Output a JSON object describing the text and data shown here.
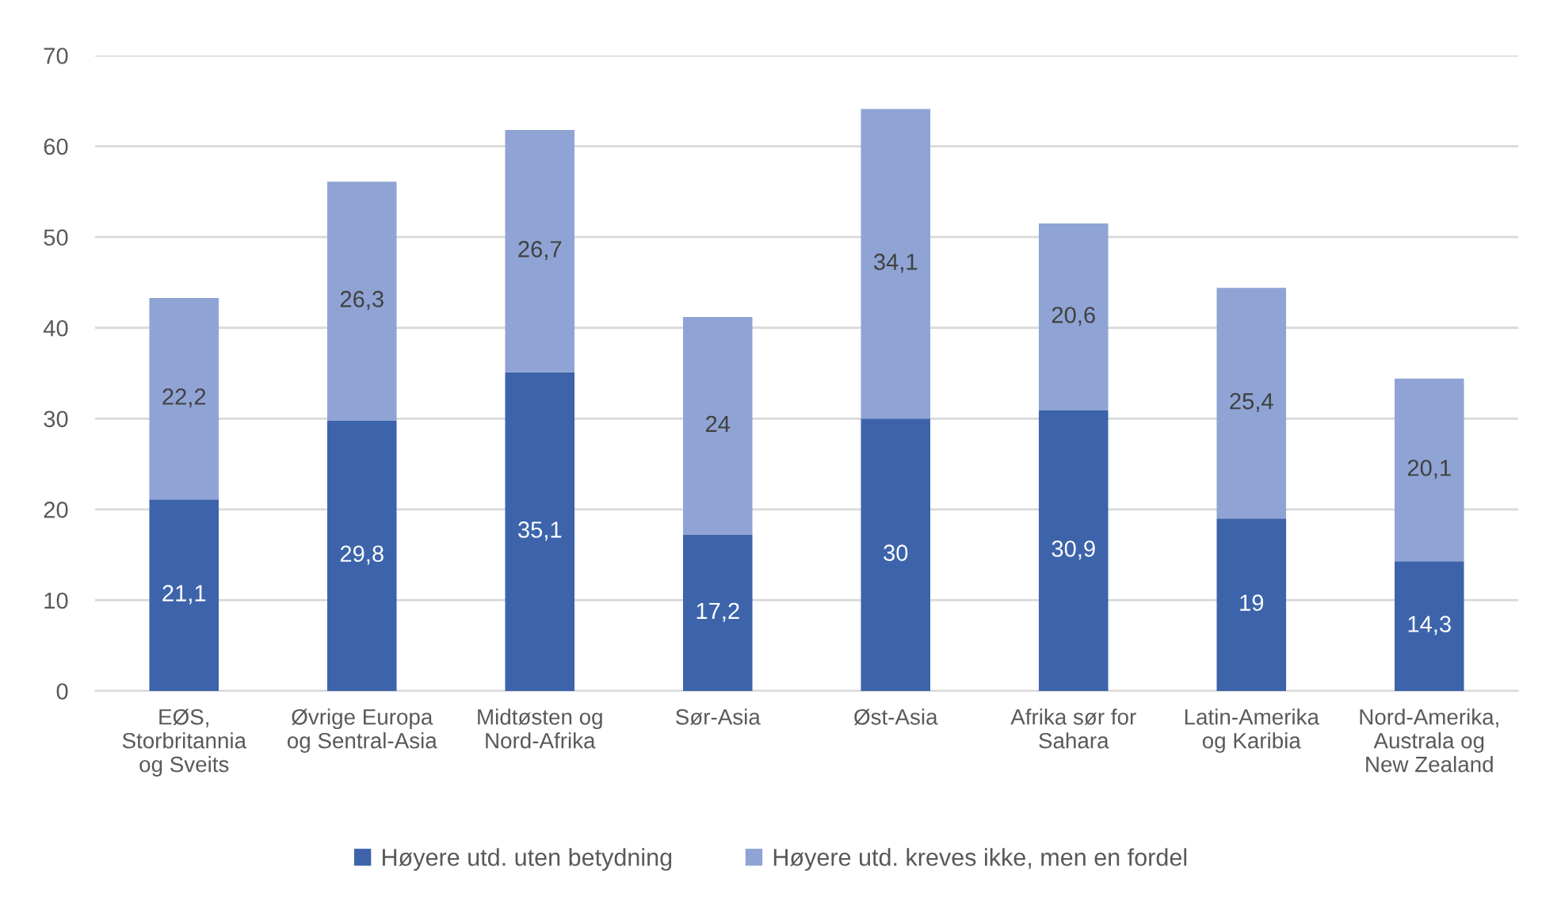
{
  "chart_data": {
    "type": "bar",
    "stacked": true,
    "categories": [
      "EØS,\nStorbritannia\nog Sveits",
      "Øvrige Europa\nog Sentral-Asia",
      "Midtøsten og\nNord-Afrika",
      "Sør-Asia",
      "Øst-Asia",
      "Afrika sør for\nSahara",
      "Latin-Amerika\nog Karibia",
      "Nord-Amerika,\nAustrala og\nNew Zealand"
    ],
    "series": [
      {
        "name": "Høyere utd. uten betydning",
        "color": "#3d64ab",
        "values": [
          21.1,
          29.8,
          35.1,
          17.2,
          30,
          30.9,
          19,
          14.3
        ],
        "value_labels": [
          "21,1",
          "29,8",
          "35,1",
          "17,2",
          "30",
          "30,9",
          "19",
          "14,3"
        ]
      },
      {
        "name": "Høyere utd. kreves ikke, men en fordel",
        "color": "#8fa4d4",
        "values": [
          22.2,
          26.3,
          26.7,
          24,
          34.1,
          20.6,
          25.4,
          20.1
        ],
        "value_labels": [
          "22,2",
          "26,3",
          "26,7",
          "24",
          "34,1",
          "20,6",
          "25,4",
          "20,1"
        ]
      }
    ],
    "ylim": [
      0,
      70
    ],
    "yticks": [
      0,
      10,
      20,
      30,
      40,
      50,
      60,
      70
    ],
    "grid": "y",
    "legend": "bottom"
  }
}
